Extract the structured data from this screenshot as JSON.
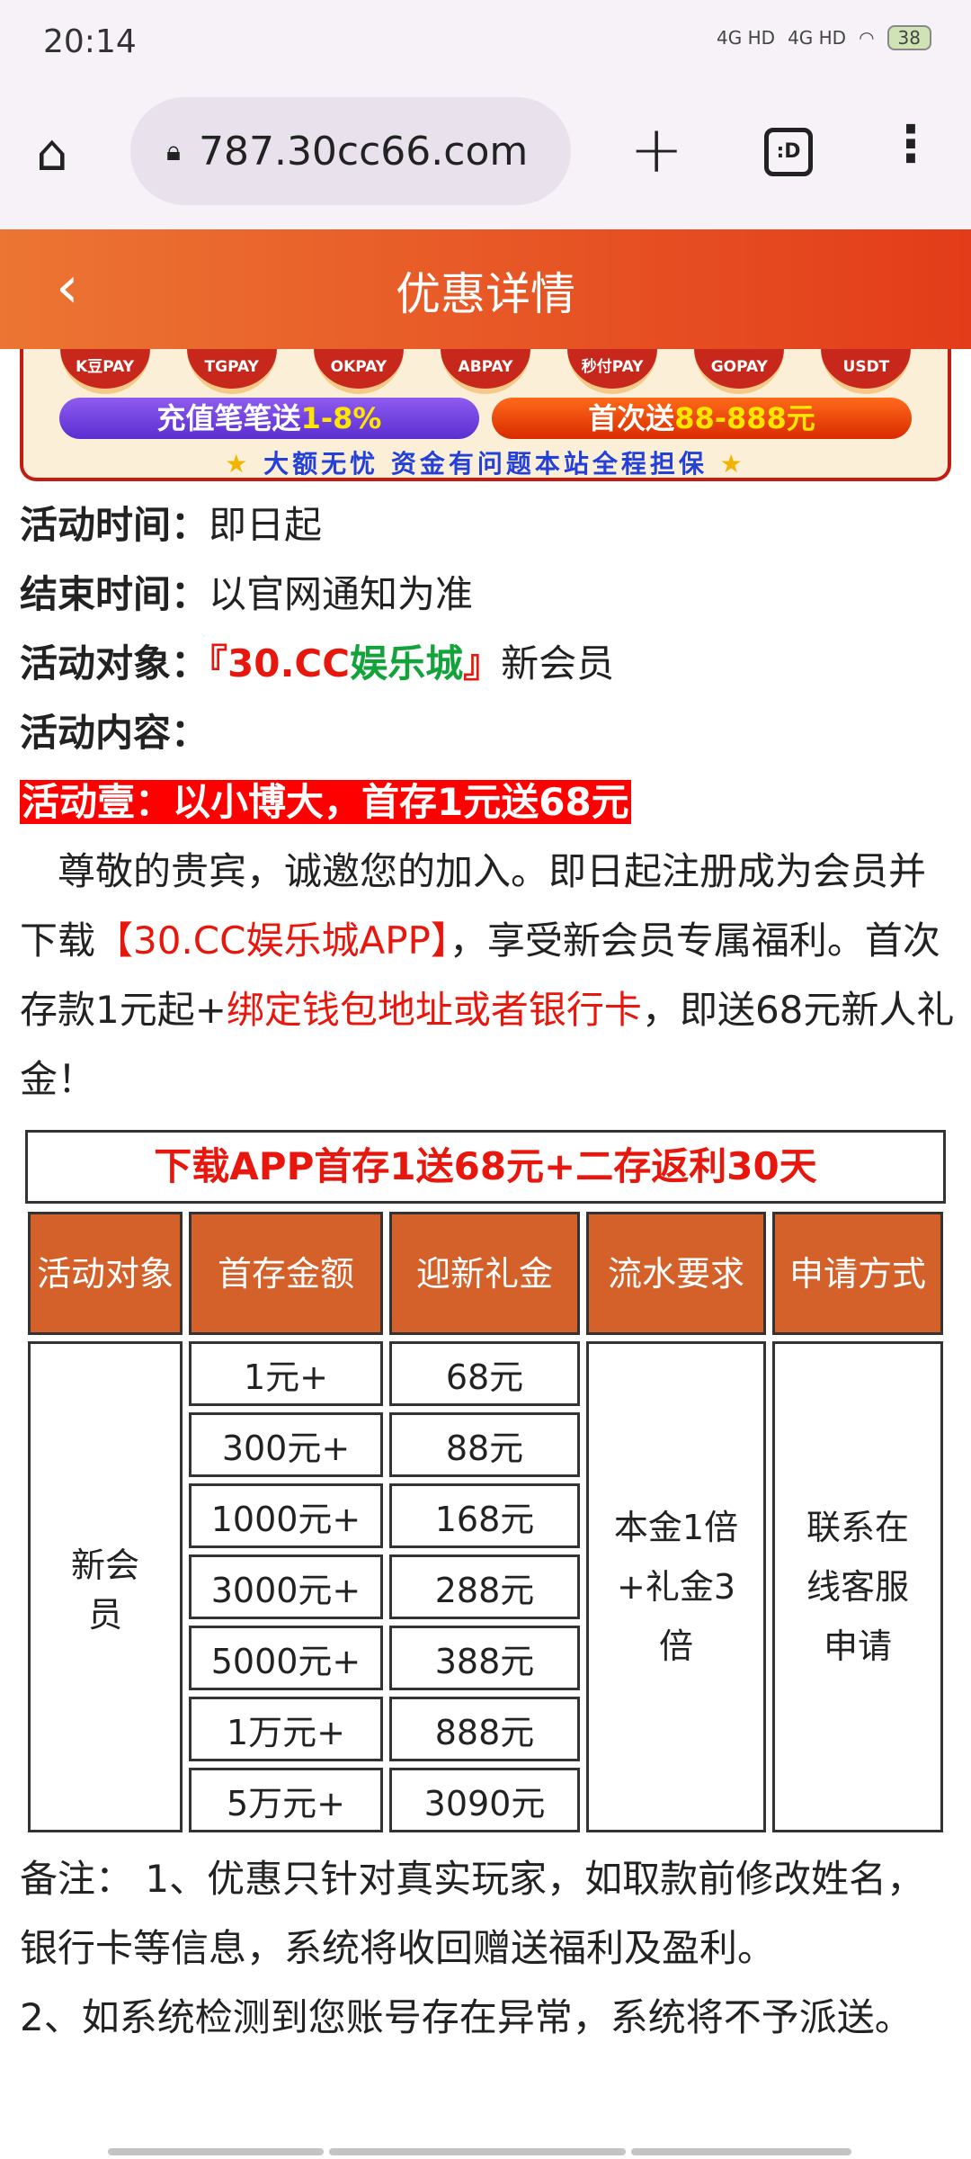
{
  "status": {
    "time": "20:14",
    "signal1": "4G HD",
    "signal2": "4G HD",
    "battery": "38"
  },
  "browser": {
    "url": "787.30cc66.com",
    "tabs_label": ":D"
  },
  "header": {
    "title": "优惠详情",
    "back_icon": "chevron-left-icon"
  },
  "banner": {
    "pay_methods": [
      "K豆PAY",
      "TGPAY",
      "OKPAY",
      "ABPAY",
      "秒付PAY",
      "GOPAY",
      "USDT"
    ],
    "pill1_a": "充值笔笔送",
    "pill1_b": "1-8%",
    "pill2_a": "首次送",
    "pill2_b": "88-888元",
    "guarantee": "大额无忧 资金有问题本站全程担保"
  },
  "info": {
    "start_label": "活动时间：",
    "start": "即日起",
    "end_label": "结束时间：",
    "end": "以官网通知为准",
    "target_label": "活动对象：",
    "target_brand_a": "『30.CC",
    "target_brand_b": "娱乐城",
    "target_brand_c": "』",
    "target_rest": "新会员",
    "content_label": "活动内容："
  },
  "promo": {
    "heading": "活动壹：以小博大，首存1元送68元",
    "p1": "　尊敬的贵宾，诚邀您的加入。即日起注册成为会员并下载",
    "p_app": "【30.CC娱乐城APP】",
    "p2": "，享受新会员专属福利。首次存款1元起+",
    "p_bind": "绑定钱包地址或者银行卡",
    "p3": "，即送68元新人礼金！"
  },
  "table": {
    "title": "下载APP首存1送68元+二存返利30天",
    "headers": [
      "活动对象",
      "首存金额",
      "迎新礼金",
      "流水要求",
      "申请方式"
    ],
    "target": "新会员",
    "deposits": [
      "1元+",
      "300元+",
      "1000元+",
      "3000元+",
      "5000元+",
      "1万元+",
      "5万元+"
    ],
    "bonuses": [
      "68元",
      "88元",
      "168元",
      "288元",
      "388元",
      "888元",
      "3090元"
    ],
    "turnover": "本金1倍+礼金3倍",
    "apply": "联系在线客服申请"
  },
  "notes": {
    "n1": "备注： 1、优惠只针对真实玩家，如取款前修改姓名，银行卡等信息，系统将收回赠送福利及盈利。",
    "n2": "2、如系统检测到您账号存在异常，系统将不予派送。"
  }
}
